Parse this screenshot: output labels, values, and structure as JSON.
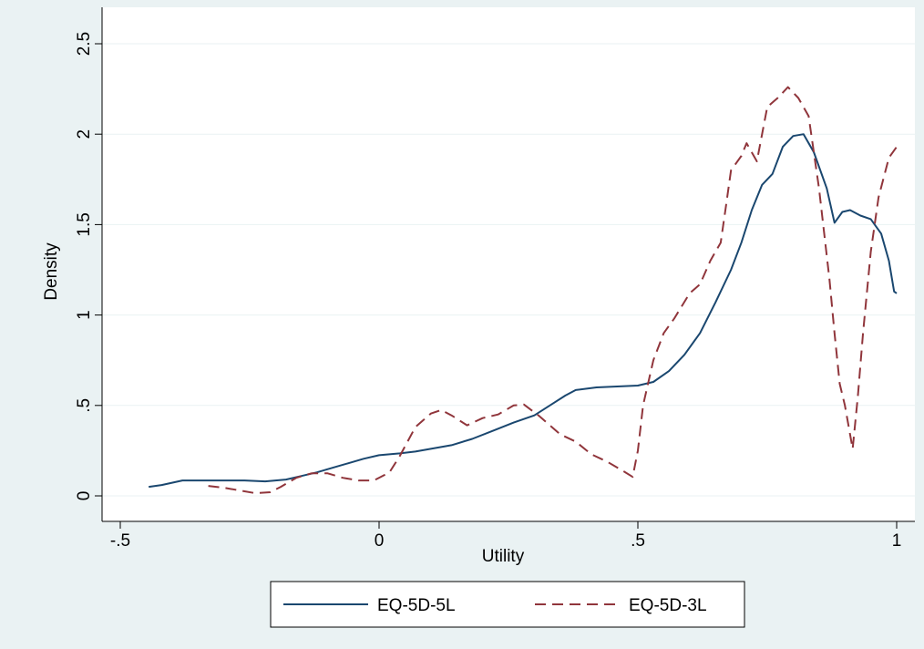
{
  "chart_data": {
    "type": "line",
    "xlabel": "Utility",
    "ylabel": "Density",
    "xlim": [
      -0.5,
      1.0
    ],
    "ylim": [
      0,
      2.5
    ],
    "x_ticks": [
      {
        "value": -0.5,
        "label": "-.5"
      },
      {
        "value": 0,
        "label": "0"
      },
      {
        "value": 0.5,
        "label": ".5"
      },
      {
        "value": 1,
        "label": "1"
      }
    ],
    "y_ticks": [
      {
        "value": 0,
        "label": "0"
      },
      {
        "value": 0.5,
        "label": ".5"
      },
      {
        "value": 1,
        "label": "1"
      },
      {
        "value": 1.5,
        "label": "1.5"
      },
      {
        "value": 2,
        "label": "2"
      },
      {
        "value": 2.5,
        "label": "2.5"
      }
    ],
    "grid": "horizontal",
    "legend_position": "bottom",
    "colors": {
      "background": "#eaf2f3",
      "plot_background": "#ffffff",
      "grid": "#eaf2f3",
      "series_1": "#1a476f",
      "series_2": "#90353b"
    },
    "series": [
      {
        "name": "EQ-5D-5L",
        "style": "solid",
        "points": [
          [
            -0.445,
            0.05
          ],
          [
            -0.42,
            0.06
          ],
          [
            -0.38,
            0.085
          ],
          [
            -0.34,
            0.085
          ],
          [
            -0.3,
            0.085
          ],
          [
            -0.26,
            0.085
          ],
          [
            -0.22,
            0.08
          ],
          [
            -0.18,
            0.09
          ],
          [
            -0.15,
            0.11
          ],
          [
            -0.12,
            0.13
          ],
          [
            -0.09,
            0.155
          ],
          [
            -0.06,
            0.18
          ],
          [
            -0.03,
            0.205
          ],
          [
            0.0,
            0.225
          ],
          [
            0.04,
            0.235
          ],
          [
            0.07,
            0.245
          ],
          [
            0.1,
            0.26
          ],
          [
            0.14,
            0.28
          ],
          [
            0.18,
            0.315
          ],
          [
            0.22,
            0.36
          ],
          [
            0.26,
            0.405
          ],
          [
            0.3,
            0.445
          ],
          [
            0.33,
            0.5
          ],
          [
            0.36,
            0.555
          ],
          [
            0.38,
            0.585
          ],
          [
            0.42,
            0.6
          ],
          [
            0.46,
            0.605
          ],
          [
            0.5,
            0.61
          ],
          [
            0.53,
            0.63
          ],
          [
            0.56,
            0.69
          ],
          [
            0.59,
            0.78
          ],
          [
            0.62,
            0.9
          ],
          [
            0.65,
            1.07
          ],
          [
            0.68,
            1.25
          ],
          [
            0.7,
            1.4
          ],
          [
            0.72,
            1.58
          ],
          [
            0.74,
            1.72
          ],
          [
            0.76,
            1.78
          ],
          [
            0.78,
            1.93
          ],
          [
            0.8,
            1.99
          ],
          [
            0.82,
            2.0
          ],
          [
            0.84,
            1.9
          ],
          [
            0.865,
            1.7
          ],
          [
            0.88,
            1.51
          ],
          [
            0.895,
            1.57
          ],
          [
            0.91,
            1.58
          ],
          [
            0.93,
            1.55
          ],
          [
            0.95,
            1.53
          ],
          [
            0.97,
            1.45
          ],
          [
            0.985,
            1.3
          ],
          [
            0.995,
            1.13
          ],
          [
            1.0,
            1.12
          ]
        ]
      },
      {
        "name": "EQ-5D-3L",
        "style": "dashed",
        "points": [
          [
            -0.33,
            0.055
          ],
          [
            -0.3,
            0.045
          ],
          [
            -0.27,
            0.03
          ],
          [
            -0.24,
            0.015
          ],
          [
            -0.21,
            0.02
          ],
          [
            -0.19,
            0.05
          ],
          [
            -0.16,
            0.1
          ],
          [
            -0.13,
            0.125
          ],
          [
            -0.1,
            0.125
          ],
          [
            -0.07,
            0.1
          ],
          [
            -0.04,
            0.085
          ],
          [
            -0.01,
            0.085
          ],
          [
            0.02,
            0.13
          ],
          [
            0.04,
            0.22
          ],
          [
            0.07,
            0.38
          ],
          [
            0.1,
            0.455
          ],
          [
            0.12,
            0.475
          ],
          [
            0.14,
            0.445
          ],
          [
            0.17,
            0.39
          ],
          [
            0.2,
            0.43
          ],
          [
            0.23,
            0.45
          ],
          [
            0.26,
            0.5
          ],
          [
            0.28,
            0.505
          ],
          [
            0.31,
            0.44
          ],
          [
            0.35,
            0.34
          ],
          [
            0.38,
            0.3
          ],
          [
            0.41,
            0.23
          ],
          [
            0.44,
            0.19
          ],
          [
            0.47,
            0.14
          ],
          [
            0.49,
            0.105
          ],
          [
            0.5,
            0.25
          ],
          [
            0.51,
            0.5
          ],
          [
            0.53,
            0.75
          ],
          [
            0.55,
            0.9
          ],
          [
            0.57,
            0.98
          ],
          [
            0.6,
            1.12
          ],
          [
            0.62,
            1.17
          ],
          [
            0.64,
            1.3
          ],
          [
            0.66,
            1.4
          ],
          [
            0.67,
            1.6
          ],
          [
            0.68,
            1.8
          ],
          [
            0.7,
            1.88
          ],
          [
            0.71,
            1.95
          ],
          [
            0.73,
            1.85
          ],
          [
            0.75,
            2.15
          ],
          [
            0.77,
            2.2
          ],
          [
            0.79,
            2.26
          ],
          [
            0.81,
            2.2
          ],
          [
            0.83,
            2.1
          ],
          [
            0.85,
            1.7
          ],
          [
            0.87,
            1.2
          ],
          [
            0.88,
            0.9
          ],
          [
            0.89,
            0.62
          ],
          [
            0.9,
            0.5
          ],
          [
            0.915,
            0.26
          ],
          [
            0.925,
            0.55
          ],
          [
            0.935,
            0.9
          ],
          [
            0.95,
            1.35
          ],
          [
            0.965,
            1.65
          ],
          [
            0.985,
            1.87
          ],
          [
            1.0,
            1.93
          ]
        ]
      }
    ]
  }
}
